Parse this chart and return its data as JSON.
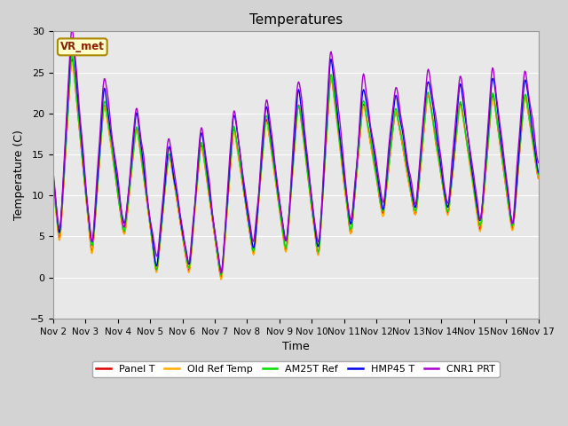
{
  "title": "Temperatures",
  "xlabel": "Time",
  "ylabel": "Temperature (C)",
  "ylim": [
    -5,
    30
  ],
  "xlim": [
    0,
    360
  ],
  "fig_bg": "#d3d3d3",
  "plot_bg": "#e8e8e8",
  "grid_color": "#ffffff",
  "colors": {
    "Panel T": "#dd0000",
    "Old Ref Temp": "#ffaa00",
    "AM25T Ref": "#00dd00",
    "HMP45 T": "#0000ee",
    "CNR1 PRT": "#aa00cc"
  },
  "legend_labels": [
    "Panel T",
    "Old Ref Temp",
    "AM25T Ref",
    "HMP45 T",
    "CNR1 PRT"
  ],
  "annotation_text": "VR_met",
  "annotation_bg": "#ffffcc",
  "annotation_border": "#aa8800",
  "yticks": [
    -5,
    0,
    5,
    10,
    15,
    20,
    25,
    30
  ],
  "xtick_labels": [
    "Nov 2",
    "Nov 3",
    "Nov 4",
    "Nov 5",
    "Nov 6",
    "Nov 7",
    "Nov 8",
    "Nov 9",
    "Nov 10",
    "Nov 11",
    "Nov 12",
    "Nov 13",
    "Nov 14",
    "Nov 15",
    "Nov 16",
    "Nov 17"
  ],
  "xtick_positions": [
    0,
    24,
    48,
    72,
    96,
    120,
    144,
    168,
    192,
    216,
    240,
    264,
    288,
    312,
    336,
    360
  ],
  "day_mins": [
    3.5,
    2.0,
    4.5,
    0.0,
    0.0,
    -1.0,
    2.0,
    2.5,
    1.5,
    4.5,
    7.0,
    7.0,
    7.0,
    5.0,
    5.0,
    6.0
  ],
  "day_maxs": [
    28.0,
    22.0,
    19.0,
    15.5,
    17.0,
    19.0,
    20.0,
    22.0,
    25.5,
    22.0,
    21.0,
    23.0,
    22.0,
    23.0,
    23.0,
    23.0
  ],
  "peak_hour": 14,
  "trough_hour": 5,
  "n_points": 720
}
